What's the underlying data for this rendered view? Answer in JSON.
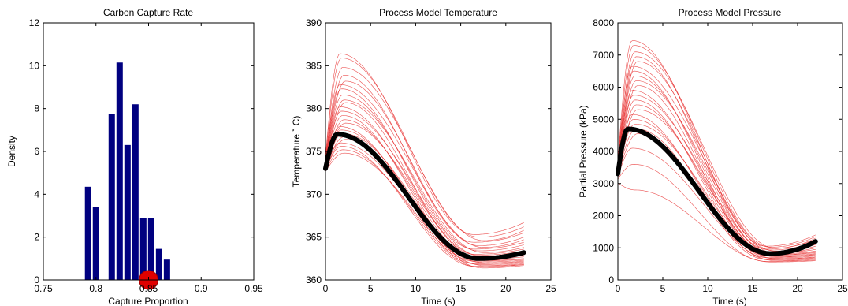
{
  "chart_data": [
    {
      "type": "bar",
      "title": "Carbon Capture Rate",
      "xlabel": "Capture Proportion",
      "ylabel": "Density",
      "xlim": [
        0.75,
        0.95
      ],
      "ylim": [
        0,
        12
      ],
      "xticks": [
        "0.75",
        "0.8",
        "0.85",
        "0.9",
        "0.95"
      ],
      "yticks": [
        "0",
        "2",
        "4",
        "6",
        "8",
        "10",
        "12"
      ],
      "bar_color": "#000080",
      "bin_width": 0.0075,
      "categories": [
        0.7925,
        0.8,
        0.8075,
        0.815,
        0.8225,
        0.83,
        0.8375,
        0.845,
        0.8525,
        0.86,
        0.8675,
        0.875,
        0.8825,
        0.89
      ],
      "values": [
        4.35,
        3.4,
        0,
        7.75,
        10.15,
        6.3,
        8.2,
        2.9,
        2.9,
        1.45,
        0.95,
        0,
        0,
        0
      ],
      "marker": {
        "x": 0.85,
        "y": 0,
        "color": "#e00000"
      }
    },
    {
      "type": "line",
      "title": "Process Model Temperature",
      "xlabel": "Time (s)",
      "ylabel": "Temperature ˚ C)",
      "xlim": [
        0,
        25
      ],
      "ylim": [
        360,
        390
      ],
      "xticks": [
        "0",
        "5",
        "10",
        "15",
        "20",
        "25"
      ],
      "yticks": [
        "360",
        "365",
        "370",
        "375",
        "380",
        "385",
        "390"
      ],
      "ensemble_color": "#e83030",
      "mean_color": "#000000",
      "x_end": 22,
      "mean": {
        "start": 373,
        "peak": 377,
        "peak_t": 1.3,
        "min": 362.5,
        "min_t": 17,
        "end": 363.2
      },
      "ensemble_peaks": [
        386.4,
        385.9,
        384.8,
        383.9,
        383.2,
        382.8,
        382.3,
        381.6,
        381.0,
        380.7,
        380.2,
        379.7,
        379.2,
        378.7,
        378.3,
        377.9,
        377.5,
        377.1,
        376.7,
        376.4,
        376.0,
        375.6,
        375.2,
        374.8
      ],
      "ensemble_mins": [
        365.3,
        365.0,
        364.6,
        364.4,
        364.0,
        363.8,
        363.6,
        363.4,
        363.2,
        363.0,
        362.9,
        362.7,
        362.5,
        362.4,
        362.3,
        362.2,
        362.1,
        362.0,
        361.9,
        361.8,
        361.7,
        361.6,
        361.5,
        361.4
      ],
      "ensemble_ends": [
        366.7,
        366.2,
        365.8,
        365.5,
        365.0,
        364.7,
        364.4,
        364.1,
        363.8,
        363.6,
        363.4,
        363.1,
        362.9,
        362.7,
        362.5,
        362.4,
        362.3,
        362.2,
        362.1,
        362.0,
        361.9,
        361.8,
        361.8,
        361.7
      ]
    },
    {
      "type": "line",
      "title": "Process Model Pressure",
      "xlabel": "Time (s)",
      "ylabel": "Partial Pressure (kPa)",
      "xlim": [
        0,
        25
      ],
      "ylim": [
        0,
        8000
      ],
      "xticks": [
        "0",
        "5",
        "10",
        "15",
        "20",
        "25"
      ],
      "yticks": [
        "0",
        "1000",
        "2000",
        "3000",
        "4000",
        "5000",
        "6000",
        "7000",
        "8000"
      ],
      "ensemble_color": "#e83030",
      "mean_color": "#000000",
      "x_end": 22,
      "mean": {
        "start": 3300,
        "peak": 4700,
        "peak_t": 1.1,
        "min": 820,
        "min_t": 17,
        "end": 1200
      },
      "ensemble_peaks": [
        7450,
        7300,
        7100,
        6950,
        6800,
        6650,
        6500,
        6350,
        6200,
        6050,
        5900,
        5750,
        5600,
        5450,
        5300,
        5150,
        5000,
        4850,
        4700,
        4550,
        4100,
        3600,
        2800
      ],
      "ensemble_mins": [
        1050,
        1020,
        990,
        960,
        930,
        900,
        880,
        860,
        840,
        820,
        800,
        780,
        760,
        740,
        720,
        700,
        680,
        660,
        640,
        620,
        600,
        580,
        560
      ],
      "ensemble_ends": [
        1400,
        1350,
        1300,
        1250,
        1200,
        1150,
        1100,
        1050,
        1000,
        950,
        900,
        880,
        850,
        820,
        800,
        780,
        750,
        720,
        700,
        680,
        650,
        620,
        600
      ]
    }
  ]
}
